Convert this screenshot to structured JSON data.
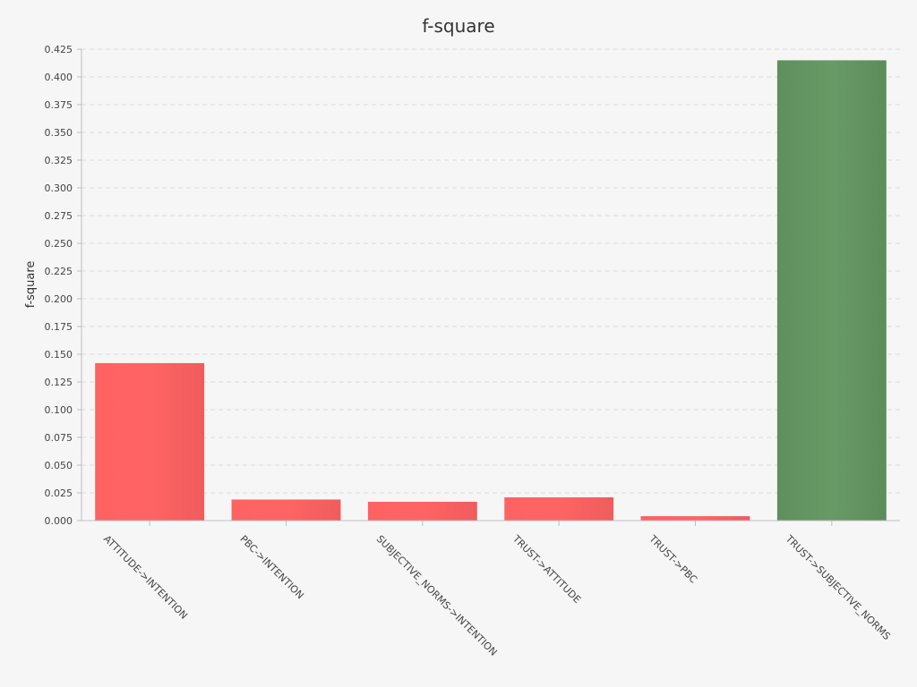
{
  "chart_data": {
    "type": "bar",
    "title": "f-square",
    "xlabel": "",
    "ylabel": "f-square",
    "ylim": [
      0,
      0.425
    ],
    "ytick_step": 0.025,
    "grid": true,
    "legend": "none",
    "categories": [
      "ATTITUDE->INTENTION",
      "PBC->INTENTION",
      "SUBJECTIVE_NORMS->INTENTION",
      "TRUST->ATTITUDE",
      "TRUST->PBC",
      "TRUST->SUBJECTIVE_NORMS"
    ],
    "values": [
      0.142,
      0.019,
      0.017,
      0.021,
      0.004,
      0.415
    ],
    "bar_colors": [
      "#ff6060",
      "#ff6060",
      "#ff6060",
      "#ff6060",
      "#ff6060",
      "#629460"
    ]
  }
}
